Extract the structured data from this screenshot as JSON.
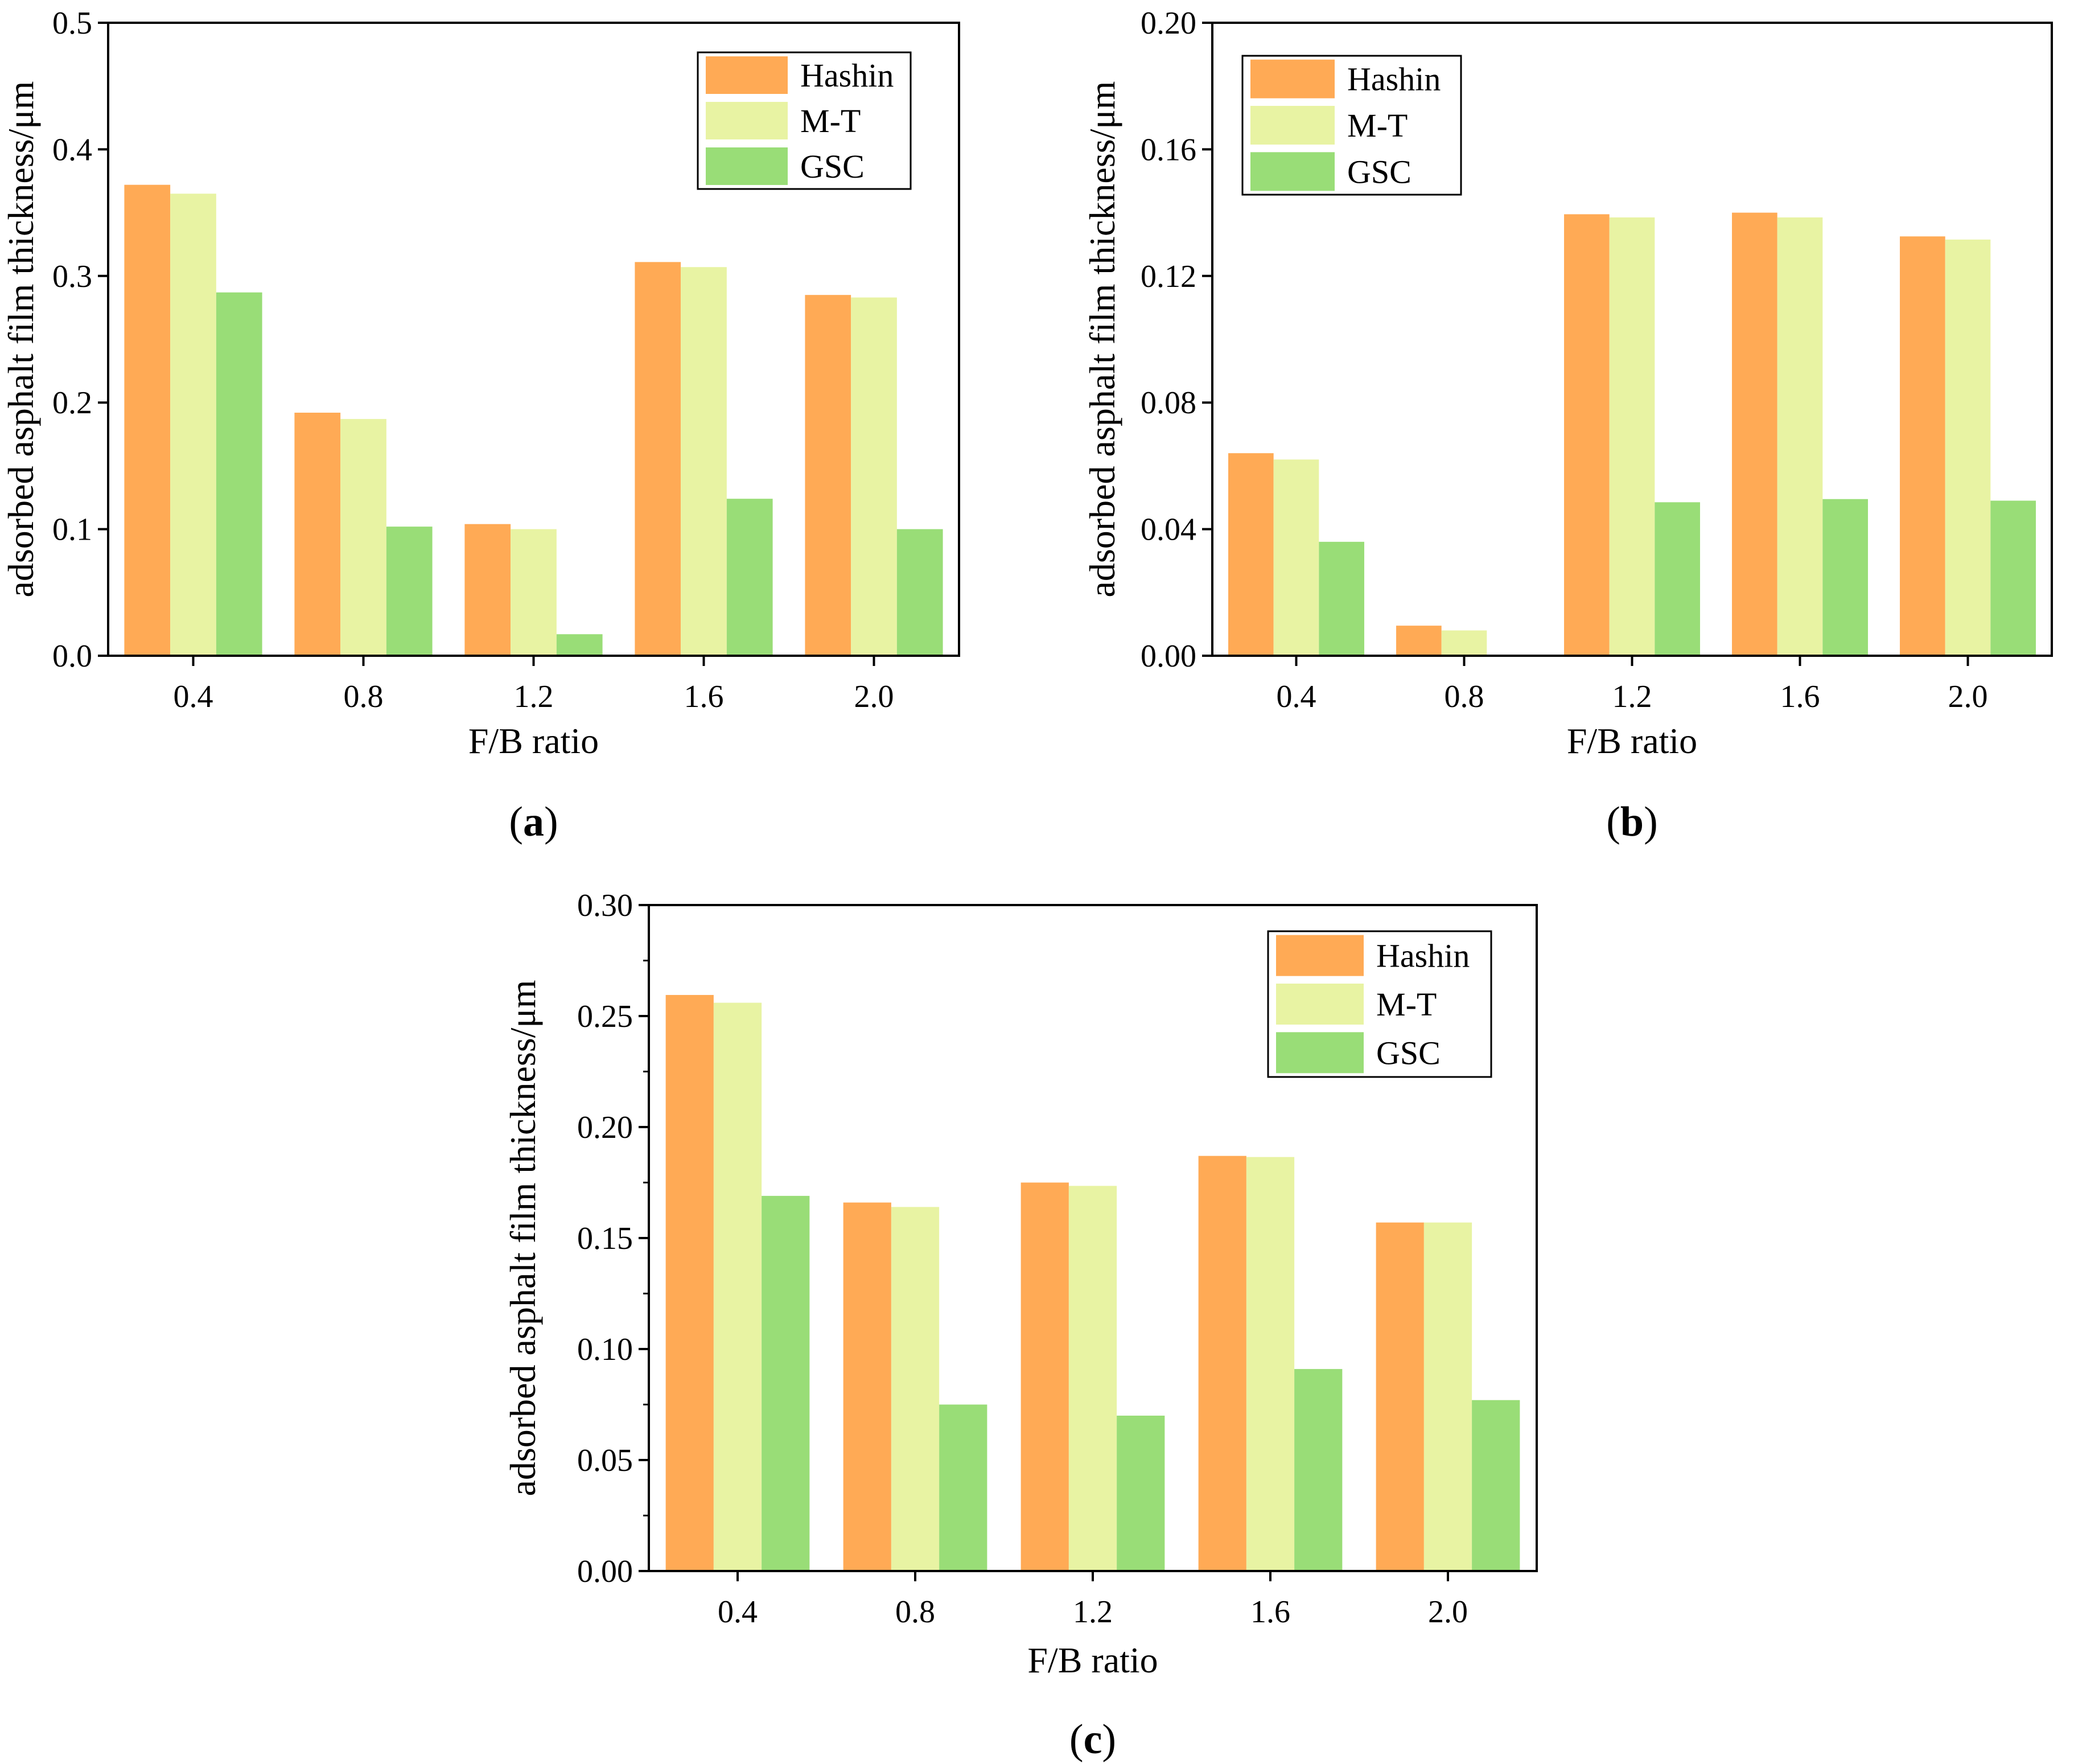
{
  "colors": {
    "Hashin": "#FFAA55",
    "M-T": "#E8F3A3",
    "GSC": "#99DD77"
  },
  "chart_data": [
    {
      "type": "bar",
      "panel_label": "a",
      "categories": [
        "0.4",
        "0.8",
        "1.2",
        "1.6",
        "2.0"
      ],
      "series": [
        {
          "name": "Hashin",
          "values": [
            0.372,
            0.192,
            0.104,
            0.311,
            0.285
          ]
        },
        {
          "name": "M-T",
          "values": [
            0.365,
            0.187,
            0.1,
            0.307,
            0.283
          ]
        },
        {
          "name": "GSC",
          "values": [
            0.287,
            0.102,
            0.017,
            0.124,
            0.1
          ]
        }
      ],
      "xlabel": "F/B ratio",
      "ylabel": "adsorbed asphalt film thickness/μm",
      "ylim": [
        0,
        0.5
      ],
      "yticks": [
        "0.0",
        "0.1",
        "0.2",
        "0.3",
        "0.4",
        "0.5"
      ],
      "legend_position": "top-right"
    },
    {
      "type": "bar",
      "panel_label": "b",
      "categories": [
        "0.4",
        "0.8",
        "1.2",
        "1.6",
        "2.0"
      ],
      "series": [
        {
          "name": "Hashin",
          "values": [
            0.064,
            0.0095,
            0.1395,
            0.14,
            0.1325
          ]
        },
        {
          "name": "M-T",
          "values": [
            0.062,
            0.008,
            0.1385,
            0.1385,
            0.1315
          ]
        },
        {
          "name": "GSC",
          "values": [
            0.036,
            0.0,
            0.0485,
            0.0495,
            0.049
          ]
        }
      ],
      "xlabel": "F/B ratio",
      "ylabel": "adsorbed asphalt film thickness/μm",
      "ylim": [
        0,
        0.2
      ],
      "yticks": [
        "0.00",
        "0.04",
        "0.08",
        "0.12",
        "0.16",
        "0.20"
      ],
      "legend_position": "top-left"
    },
    {
      "type": "bar",
      "panel_label": "c",
      "categories": [
        "0.4",
        "0.8",
        "1.2",
        "1.6",
        "2.0"
      ],
      "series": [
        {
          "name": "Hashin",
          "values": [
            0.2595,
            0.166,
            0.175,
            0.187,
            0.157
          ]
        },
        {
          "name": "M-T",
          "values": [
            0.256,
            0.164,
            0.1735,
            0.1865,
            0.157
          ]
        },
        {
          "name": "GSC",
          "values": [
            0.169,
            0.075,
            0.07,
            0.091,
            0.077
          ]
        }
      ],
      "xlabel": "F/B ratio",
      "ylabel": "adsorbed asphalt film thickness/μm",
      "ylim": [
        0,
        0.3
      ],
      "yticks": [
        "0.00",
        "0.05",
        "0.10",
        "0.15",
        "0.20",
        "0.25",
        "0.30"
      ],
      "legend_position": "top-right"
    }
  ]
}
